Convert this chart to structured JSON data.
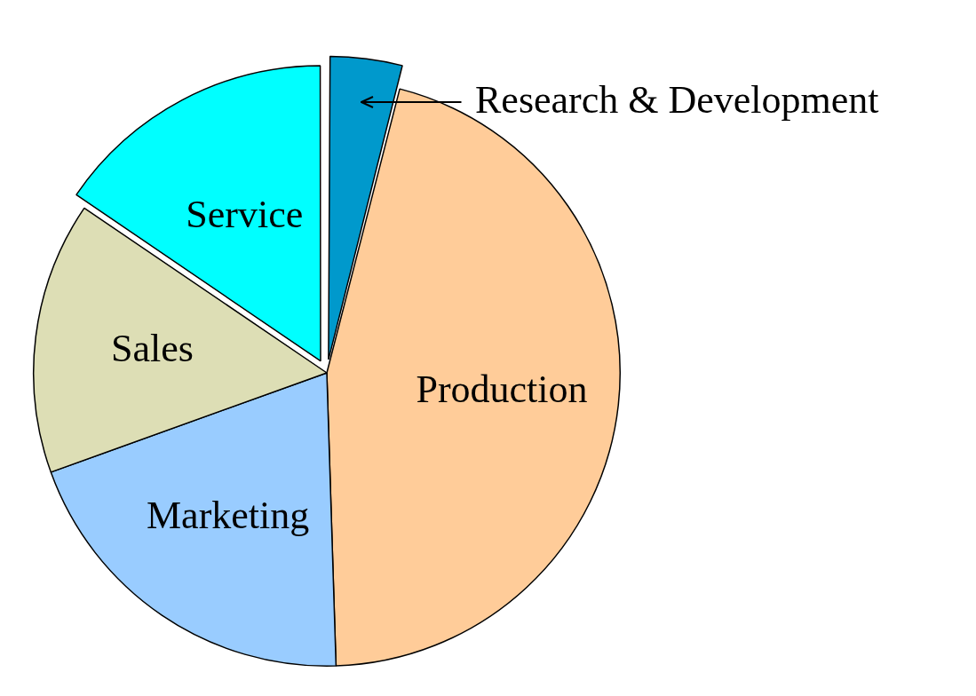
{
  "chart_data": {
    "type": "pie",
    "categories": [
      "Research & Development",
      "Production",
      "Marketing",
      "Sales",
      "Service"
    ],
    "values": [
      4,
      45.5,
      20,
      15,
      15.5
    ],
    "colors": [
      "#0099cc",
      "#ffcc99",
      "#99ccff",
      "#dddeb5",
      "#00ffff"
    ],
    "legend": false
  }
}
